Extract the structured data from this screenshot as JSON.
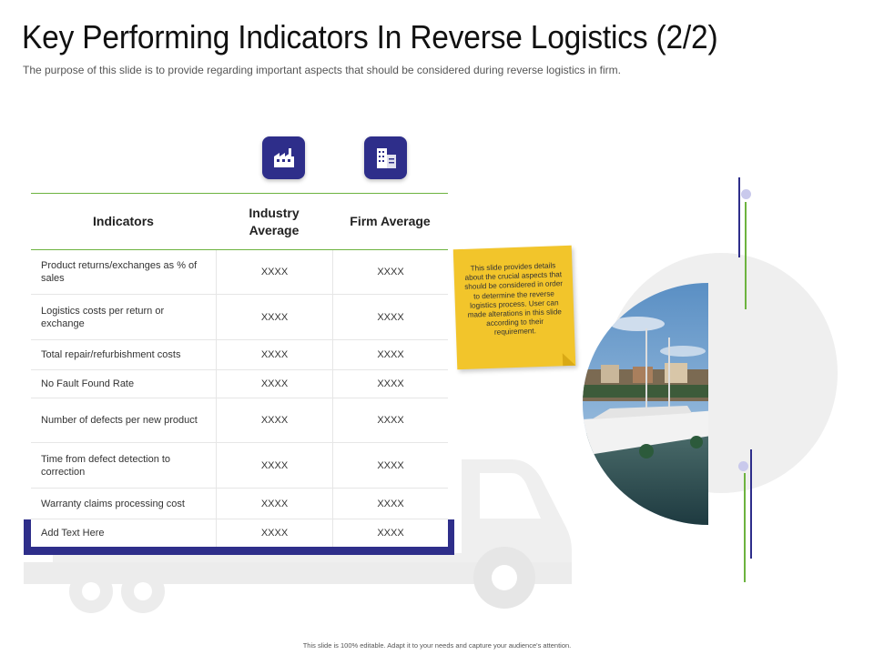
{
  "slide": {
    "title": "Key Performing Indicators In Reverse Logistics (2/2)",
    "subtitle": "The purpose of this slide is to provide regarding important aspects that should be considered during reverse logistics in firm.",
    "footer": "This slide is 100% editable. Adapt it to your needs and capture your audience's attention."
  },
  "colors": {
    "accent": "#2e2e8a",
    "green": "#6db33f",
    "note": "#f2c52b",
    "dot": "#c9c9ec"
  },
  "table": {
    "headers": {
      "indicators": "Indicators",
      "industry": "Industry Average",
      "firm": "Firm Average"
    },
    "icons": {
      "industry": "factory-icon",
      "firm": "building-icon"
    },
    "rows": [
      {
        "indicator": "Product returns/exchanges as % of sales",
        "industry": "XXXX",
        "firm": "XXXX"
      },
      {
        "indicator": "Logistics costs per return or exchange",
        "industry": "XXXX",
        "firm": "XXXX"
      },
      {
        "indicator": "Total repair/refurbishment costs",
        "industry": "XXXX",
        "firm": "XXXX"
      },
      {
        "indicator": "No Fault Found Rate",
        "industry": "XXXX",
        "firm": "XXXX"
      },
      {
        "indicator": "Number of defects per new product",
        "industry": "XXXX",
        "firm": "XXXX"
      },
      {
        "indicator": "Time from defect detection to correction",
        "industry": "XXXX",
        "firm": "XXXX"
      },
      {
        "indicator": "Warranty claims processing cost",
        "industry": "XXXX",
        "firm": "XXXX"
      },
      {
        "indicator": "Add Text Here",
        "industry": "XXXX",
        "firm": "XXXX"
      }
    ]
  },
  "note": {
    "text": "This slide provides details about the crucial aspects that should be considered in order to determine the reverse logistics process. User can made alterations in this slide according to their requirement."
  },
  "decor": {
    "truck_icon": "truck-icon",
    "photo": "harbor-boat-photo"
  }
}
